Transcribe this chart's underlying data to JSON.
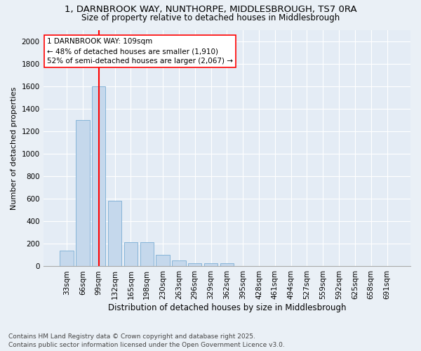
{
  "title": "1, DARNBROOK WAY, NUNTHORPE, MIDDLESBROUGH, TS7 0RA",
  "subtitle": "Size of property relative to detached houses in Middlesbrough",
  "xlabel": "Distribution of detached houses by size in Middlesbrough",
  "ylabel": "Number of detached properties",
  "bar_color": "#c5d8ec",
  "bar_edge_color": "#7aadd4",
  "categories": [
    "33sqm",
    "66sqm",
    "99sqm",
    "132sqm",
    "165sqm",
    "198sqm",
    "230sqm",
    "263sqm",
    "296sqm",
    "329sqm",
    "362sqm",
    "395sqm",
    "428sqm",
    "461sqm",
    "494sqm",
    "527sqm",
    "559sqm",
    "592sqm",
    "625sqm",
    "658sqm",
    "691sqm"
  ],
  "values": [
    140,
    1300,
    1600,
    580,
    215,
    215,
    100,
    50,
    25,
    25,
    25,
    0,
    0,
    0,
    0,
    0,
    0,
    0,
    0,
    0,
    0
  ],
  "red_line_index": 2,
  "annotation_title": "1 DARNBROOK WAY: 109sqm",
  "annotation_line1": "← 48% of detached houses are smaller (1,910)",
  "annotation_line2": "52% of semi-detached houses are larger (2,067) →",
  "ylim": [
    0,
    2100
  ],
  "yticks": [
    0,
    200,
    400,
    600,
    800,
    1000,
    1200,
    1400,
    1600,
    1800,
    2000
  ],
  "footer1": "Contains HM Land Registry data © Crown copyright and database right 2025.",
  "footer2": "Contains public sector information licensed under the Open Government Licence v3.0.",
  "bg_color": "#eaf0f6",
  "plot_bg_color": "#e4ecf5",
  "grid_color": "#ffffff",
  "title_fontsize": 9.5,
  "subtitle_fontsize": 8.5,
  "xlabel_fontsize": 8.5,
  "ylabel_fontsize": 8,
  "tick_fontsize": 7.5,
  "footer_fontsize": 6.5,
  "ann_fontsize": 7.5
}
